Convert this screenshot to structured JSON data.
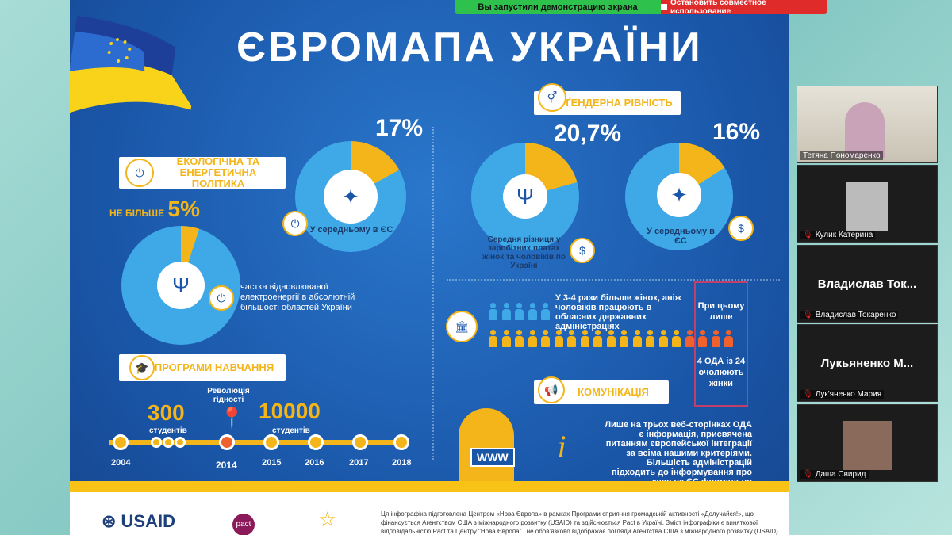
{
  "share_bar": {
    "status": "Вы запустили демонстрацию экрана",
    "stop": "Остановить совместное использование"
  },
  "infographic": {
    "title": "ЄВРОМАПА УКРАЇНИ",
    "ecology": {
      "heading": "ЕКОЛОГІЧНА ТА ЕНЕРГЕТИЧНА ПОЛІТИКА",
      "eu_pct": "17%",
      "eu_value": 17,
      "eu_label": "У середньому в ЄС",
      "ua_prefix": "НЕ БІЛЬШЕ",
      "ua_pct": "5%",
      "ua_value": 5,
      "ua_label": "частка відновлюваної електроенергії в абсолютній більшості областей України"
    },
    "gender": {
      "heading": "ҐЕНДЕРНА РІВНІСТЬ",
      "ua_pct": "20,7%",
      "ua_value": 20.7,
      "ua_label": "Середня різниця у заробітних платах жінок та чоловіків по Україні",
      "eu_pct": "16%",
      "eu_value": 16,
      "eu_label": "У середньому в ЄС",
      "staff_text": "У 3-4 рази більше жінок, аніж чоловіків працюють в обласних державних адміністраціях",
      "box_top": "При цьому лише",
      "box_bottom": "4 ОДА із 24 очолюють жінки"
    },
    "education": {
      "heading": "ПРОГРАМИ НАВЧАННЯ",
      "n1": "300",
      "n1_label": "студентів",
      "revolution": "Революція гідності",
      "n2": "10000",
      "n2_label": "студентів",
      "years": [
        "2004",
        "2014",
        "2015",
        "2016",
        "2017",
        "2018"
      ]
    },
    "communication": {
      "heading": "КОМУНІКАЦІЯ",
      "www": "WWW",
      "text": "Лише на трьох веб-сторінках ОДА є інформація, присвячена питанням європейської інтеграції за всіма нашими критеріями. Більшість адміністрацій підходить до інформування про курс на ЄС формально"
    },
    "footer": {
      "usaid": "USAID",
      "pact": "pact",
      "disclaimer": "Ця інфографіка підготовлена Центром «Нова Європа» в рамках Програми сприяння громадській активності «Долучайся!», що фінансується Агентством США з міжнародного розвитку (USAID) та здійснюється Pact в Україні. Зміст інфографіки є виняткової відповідальністю Pact та Центру \"Нова Європа\" і не обов'язково відображає погляди Агентства США з міжнародного розвитку (USAID)"
    }
  },
  "participants": [
    {
      "name": "Тетяна Пономаренко"
    },
    {
      "name": "Кулик Катерина"
    },
    {
      "name": "Владислав Токаренко",
      "display": "Владислав Ток..."
    },
    {
      "name": "Лук'яненко Мария",
      "display": "Лукьяненко М..."
    },
    {
      "name": "Даша Свирид"
    }
  ],
  "colors": {
    "blue": "#1a56a8",
    "yellow": "#f3b519",
    "orange": "#f0622d",
    "pie_blue": "#3fa9e8"
  }
}
